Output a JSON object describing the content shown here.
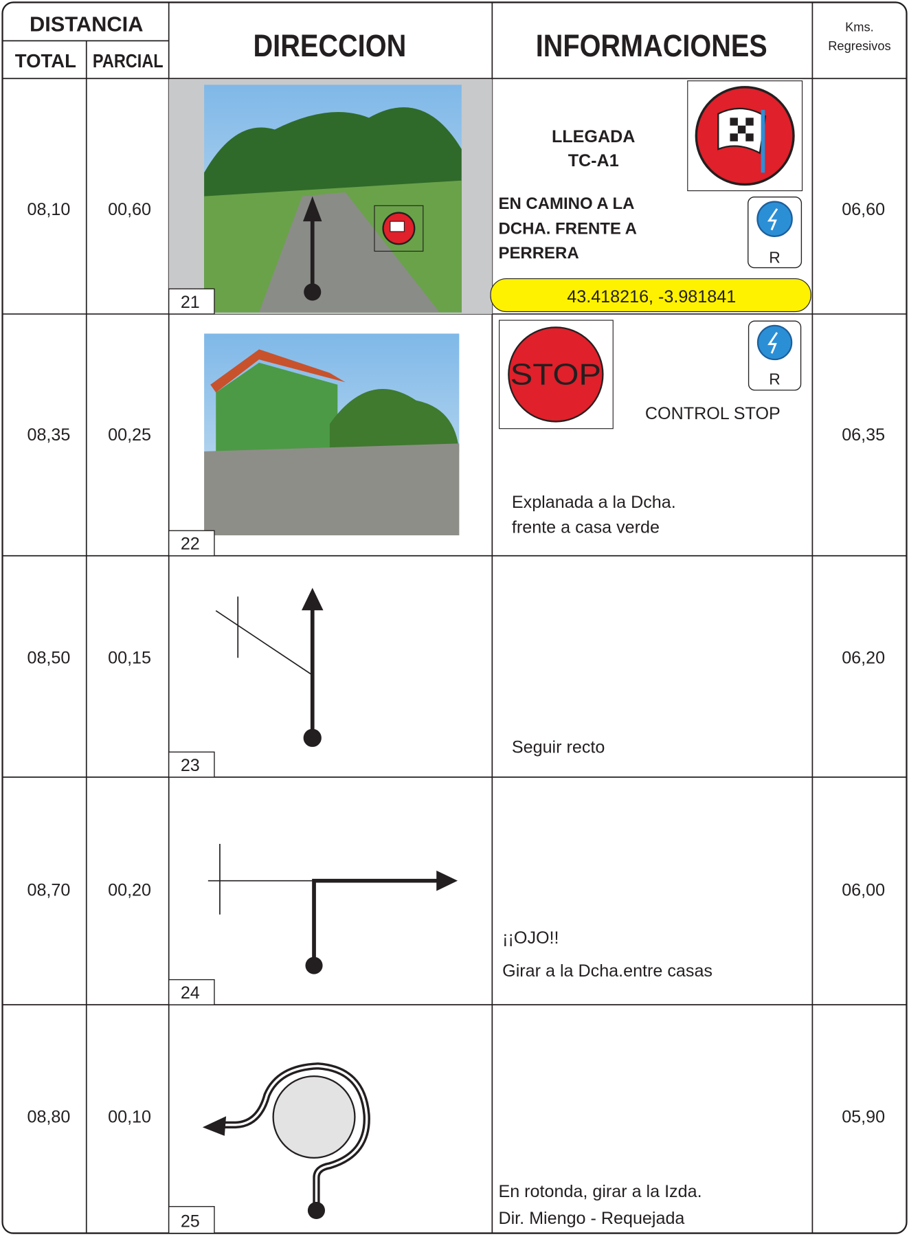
{
  "header": {
    "distancia": "DISTANCIA",
    "total": "TOTAL",
    "parcial": "PARCIAL",
    "direccion": "DIRECCION",
    "informaciones": "INFORMACIONES",
    "kms": [
      "Kms.",
      "Regresivos"
    ]
  },
  "rows": [
    {
      "total": "08,10",
      "parcial": "00,60",
      "number": "21",
      "kms": "06,60",
      "info": {
        "title": [
          "LLEGADA",
          "TC-A1"
        ],
        "text": [
          "EN CAMINO A LA",
          "DCHA. FRENTE A",
          "PERRERA"
        ],
        "sign": "R",
        "coords": "43.418216, -3.981841"
      }
    },
    {
      "total": "08,35",
      "parcial": "00,25",
      "number": "22",
      "kms": "06,35",
      "info": {
        "stop": "STOP",
        "sign": "R",
        "label": "CONTROL STOP",
        "text": [
          "Explanada a la Dcha.",
          "frente a casa verde"
        ]
      }
    },
    {
      "total": "08,50",
      "parcial": "00,15",
      "number": "23",
      "kms": "06,20",
      "info": {
        "text": [
          "Seguir recto"
        ]
      }
    },
    {
      "total": "08,70",
      "parcial": "00,20",
      "number": "24",
      "kms": "06,00",
      "info": {
        "text": [
          "¡¡OJO!!",
          "Girar a la Dcha.entre casas"
        ]
      }
    },
    {
      "total": "08,80",
      "parcial": "00,10",
      "number": "25",
      "kms": "05,90",
      "info": {
        "text": [
          "En rotonda, girar a la Izda.",
          "Dir. Miengo - Requejada"
        ]
      }
    }
  ]
}
